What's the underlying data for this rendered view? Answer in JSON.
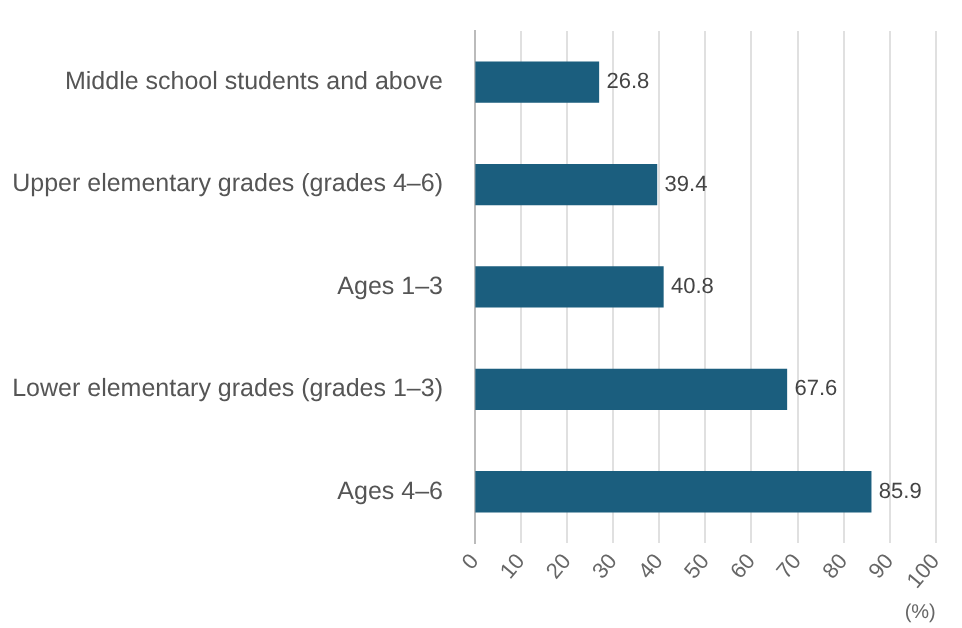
{
  "chart_data": {
    "type": "bar",
    "orientation": "horizontal",
    "categories": [
      "Middle school students and above",
      "Upper elementary grades (grades 4–6)",
      "Ages 1–3",
      "Lower elementary grades (grades 1–3)",
      "Ages 4–6"
    ],
    "values": [
      26.8,
      39.4,
      40.8,
      67.6,
      85.9
    ],
    "color": "#1b5e7e",
    "xlim": [
      0,
      100
    ],
    "xticks": [
      0,
      10,
      20,
      30,
      40,
      50,
      60,
      70,
      80,
      90,
      100
    ],
    "xlabel": "(%)",
    "grid": "x",
    "data_labels": true
  }
}
